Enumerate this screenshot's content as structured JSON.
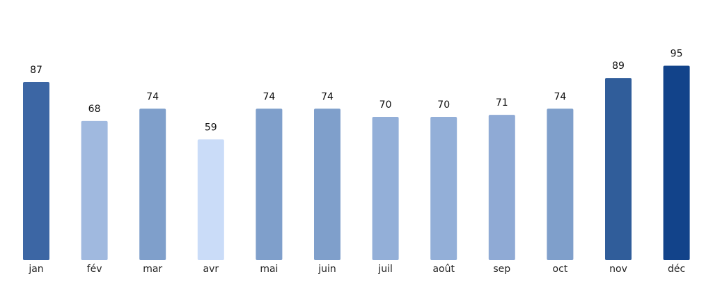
{
  "chart_data": {
    "type": "bar",
    "categories": [
      "jan",
      "fév",
      "mar",
      "avr",
      "mai",
      "juin",
      "juil",
      "août",
      "sep",
      "oct",
      "nov",
      "déc"
    ],
    "values": [
      87,
      68,
      74,
      59,
      74,
      74,
      70,
      70,
      71,
      74,
      89,
      95
    ],
    "ylim": [
      0,
      110
    ],
    "grid": false,
    "legend": "none",
    "data_labels": true,
    "colors": [
      "#3c66a4",
      "#a0b9df",
      "#7f9fcb",
      "#cadcf8",
      "#7f9fcb",
      "#7f9fcb",
      "#93afd8",
      "#93afd8",
      "#8faad5",
      "#7f9fcb",
      "#305d9a",
      "#12438a"
    ]
  }
}
